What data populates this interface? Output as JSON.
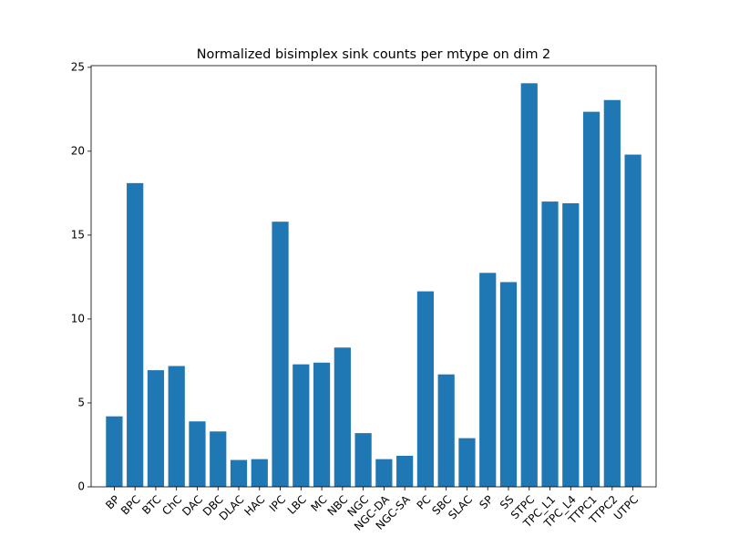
{
  "chart_data": {
    "type": "bar",
    "title": "Normalized bisimplex sink counts per mtype on dim 2",
    "xlabel": "",
    "ylabel": "",
    "categories": [
      "BP",
      "BPC",
      "BTC",
      "ChC",
      "DAC",
      "DBC",
      "DLAC",
      "HAC",
      "IPC",
      "LBC",
      "MC",
      "NBC",
      "NGC",
      "NGC-DA",
      "NGC-SA",
      "PC",
      "SBC",
      "SLAC",
      "SP",
      "SS",
      "STPC",
      "TPC_L1",
      "TPC_L4",
      "TTPC1",
      "TTPC2",
      "UTPC"
    ],
    "values": [
      4.2,
      18.1,
      6.95,
      7.2,
      3.9,
      3.3,
      1.6,
      1.65,
      15.8,
      7.3,
      7.4,
      8.3,
      3.2,
      1.65,
      1.85,
      11.65,
      6.7,
      2.9,
      12.75,
      12.2,
      24.05,
      17.0,
      16.9,
      22.35,
      23.05,
      19.8
    ],
    "ylim": [
      0,
      25.1
    ],
    "yticks": [
      0,
      5,
      10,
      15,
      20,
      25
    ],
    "bar_color": "#1f77b4",
    "grid": false,
    "legend": "none"
  }
}
